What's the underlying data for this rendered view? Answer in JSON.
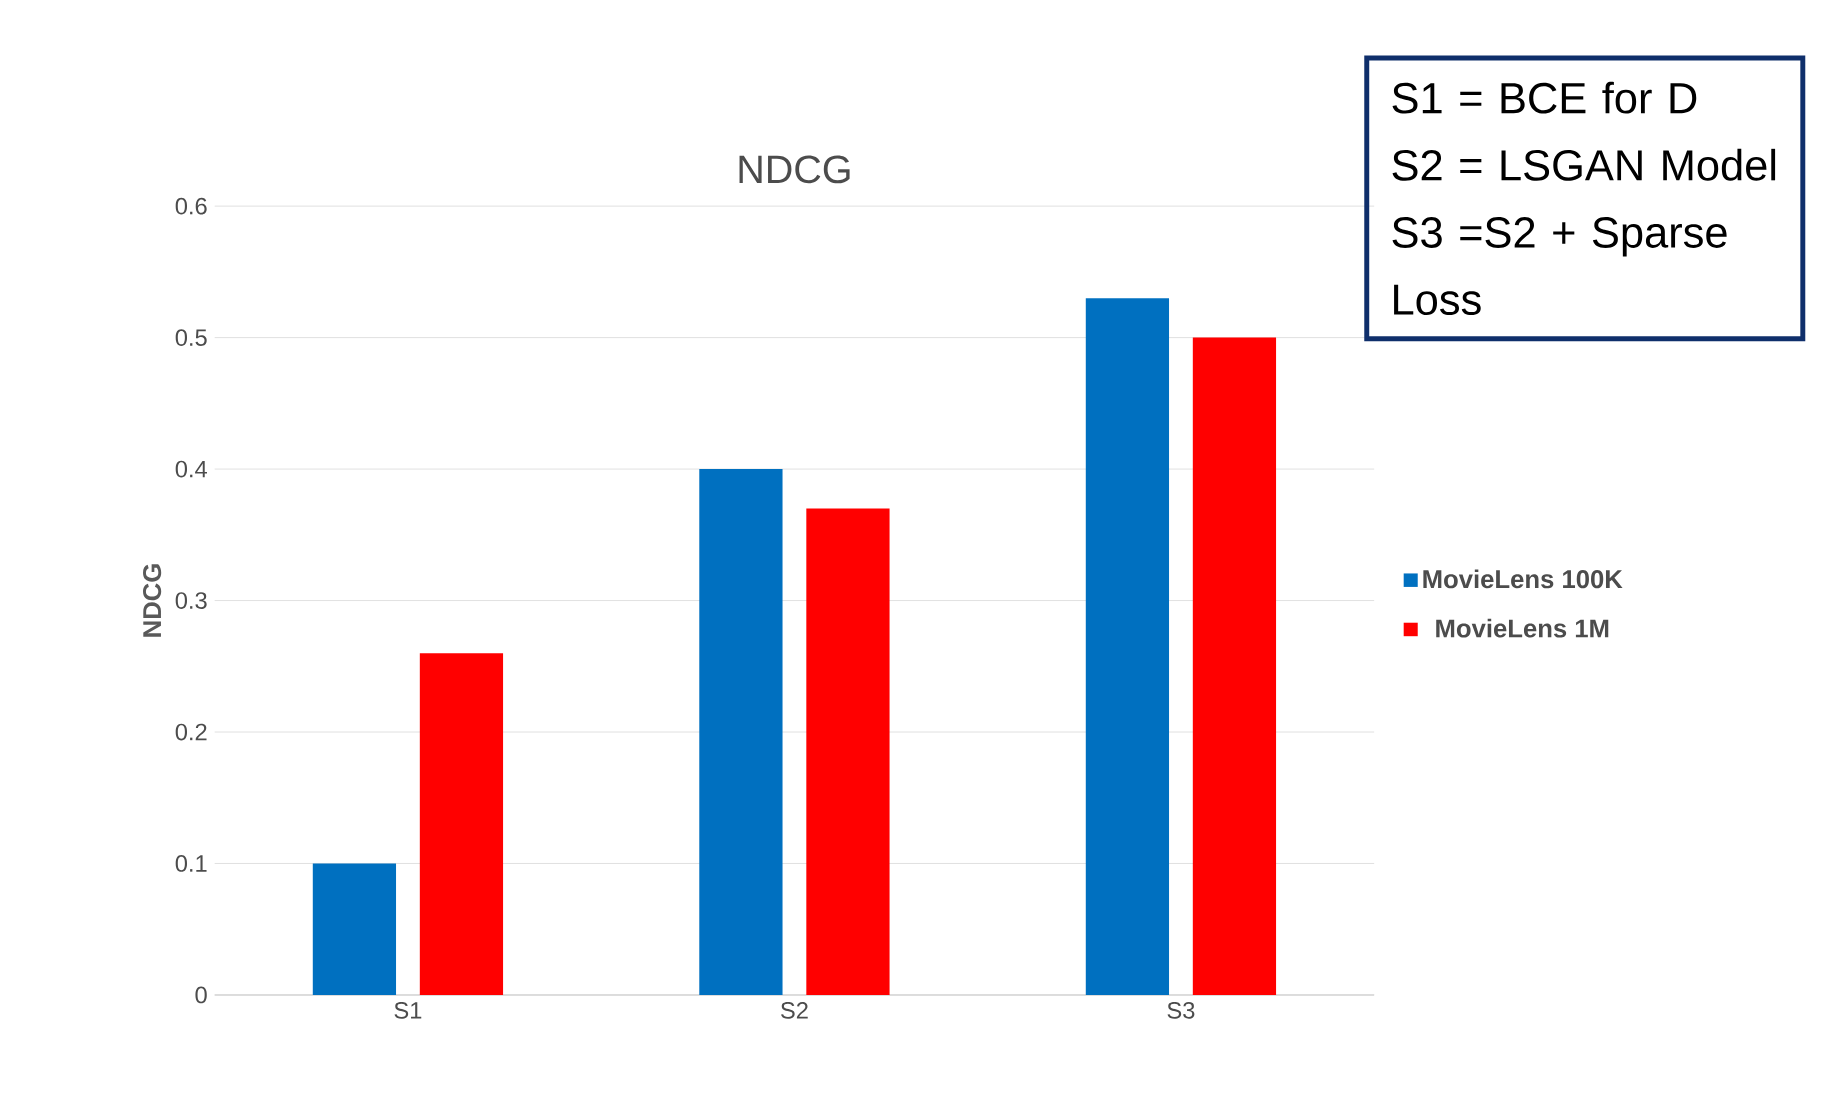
{
  "chart_data": {
    "type": "bar",
    "title": "NDCG",
    "ylabel": "NDCG",
    "categories": [
      "S1",
      "S2",
      "S3"
    ],
    "series": [
      {
        "name": "MovieLens 100K",
        "color": "#0070c0",
        "values": [
          0.1,
          0.4,
          0.53
        ]
      },
      {
        "name": "MovieLens 1M",
        "color": "#ff0000",
        "values": [
          0.26,
          0.37,
          0.5
        ]
      }
    ],
    "ylim": [
      0,
      0.6
    ],
    "yticks": [
      0,
      0.1,
      0.2,
      0.3,
      0.4,
      0.5,
      0.6
    ],
    "grid": "y",
    "legend": "right",
    "annotations": [
      "S1 = BCE for D",
      "S2 = LSGAN Model",
      "S3 =S2 + Sparse Loss"
    ]
  }
}
